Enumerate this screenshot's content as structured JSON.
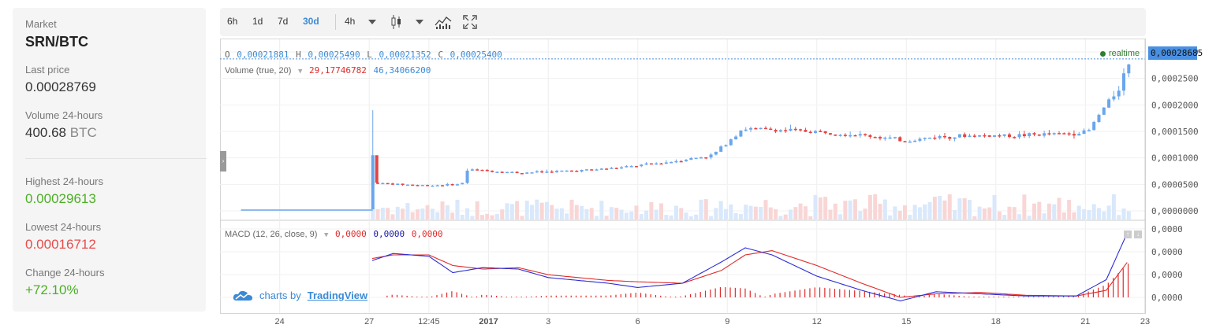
{
  "market": {
    "market_label": "Market",
    "market_value": "SRN/BTC",
    "last_price_label": "Last price",
    "last_price_value": "0.00028769",
    "volume_label": "Volume 24-hours",
    "volume_value": "400.68",
    "volume_unit": "BTC",
    "highest_label": "Highest 24-hours",
    "highest_value": "0.00029613",
    "lowest_label": "Lowest 24-hours",
    "lowest_value": "0.00016712",
    "change_label": "Change 24-hours",
    "change_value": "+72.10%"
  },
  "toolbar": {
    "ranges": [
      "6h",
      "1d",
      "7d",
      "30d"
    ],
    "active_range": "30d",
    "interval": "4h"
  },
  "legend": {
    "o_label": "O",
    "o_value": "0,00021881",
    "h_label": "H",
    "h_value": "0,00025490",
    "l_label": "L",
    "l_value": "0,00021352",
    "c_label": "C",
    "c_value": "0,00025400",
    "volume_title": "Volume (true, 20)",
    "volume_red": "29,17746782",
    "volume_blue": "46,34066200",
    "macd_title": "MACD (12, 26, close, 9)",
    "macd_v1": "0,0000",
    "macd_v2": "0,0000",
    "macd_v3": "0,0000",
    "realtime": "realtime",
    "last_price_tag": "0,00028685"
  },
  "branding": {
    "prefix": "charts by",
    "name": "TradingView"
  },
  "colors": {
    "up": "#6aa6ec",
    "down": "#e44343",
    "macd": "#2b2bd6",
    "signal": "#e02a2a",
    "accent": "#3b8ad6",
    "realtime": "#2e7d32"
  },
  "chart_data": {
    "type": "candlestick",
    "price_axis_ticks": [
      "0,00030000",
      "0,00025000",
      "0,00020000",
      "0,00015000",
      "0,00010000",
      "0,00005000",
      "0,00000000"
    ],
    "price_ylim": [
      0,
      0.0003
    ],
    "macd_axis_ticks": [
      "0,0000",
      "0,0000",
      "0,0000",
      "0,0000"
    ],
    "time_axis": [
      {
        "label": "24",
        "t": 0.5
      },
      {
        "label": "27",
        "t": 3.5
      },
      {
        "label": "12:45",
        "t": 5.5
      },
      {
        "label": "2017",
        "t": 7.5
      },
      {
        "label": "3",
        "t": 9.5
      },
      {
        "label": "6",
        "t": 12.5
      },
      {
        "label": "9",
        "t": 15.5
      },
      {
        "label": "12",
        "t": 18.5
      },
      {
        "label": "15",
        "t": 21.5
      },
      {
        "label": "18",
        "t": 24.5
      },
      {
        "label": "21",
        "t": 27.5
      },
      {
        "label": "23",
        "t": 29.5
      }
    ],
    "t_range": [
      -1.5,
      29.5
    ],
    "price_key_points": [
      {
        "t": 3.62,
        "p": 5.3e-05
      },
      {
        "t": 4.5,
        "p": 5e-05
      },
      {
        "t": 5.5,
        "p": 4.8e-05
      },
      {
        "t": 6.6,
        "p": 5e-05
      },
      {
        "t": 6.8,
        "p": 7.8e-05
      },
      {
        "t": 8.5,
        "p": 7.2e-05
      },
      {
        "t": 10.5,
        "p": 7.6e-05
      },
      {
        "t": 12.0,
        "p": 8.2e-05
      },
      {
        "t": 13.5,
        "p": 9.2e-05
      },
      {
        "t": 15.0,
        "p": 0.000105
      },
      {
        "t": 16.0,
        "p": 0.000155
      },
      {
        "t": 17.5,
        "p": 0.000152
      },
      {
        "t": 19.0,
        "p": 0.000148
      },
      {
        "t": 20.5,
        "p": 0.00014
      },
      {
        "t": 21.5,
        "p": 0.000132
      },
      {
        "t": 22.5,
        "p": 0.00014
      },
      {
        "t": 23.8,
        "p": 0.000142
      },
      {
        "t": 25.0,
        "p": 0.000142
      },
      {
        "t": 27.0,
        "p": 0.000146
      },
      {
        "t": 27.6,
        "p": 0.00015
      },
      {
        "t": 28.0,
        "p": 0.000185
      },
      {
        "t": 28.6,
        "p": 0.00023
      },
      {
        "t": 29.0,
        "p": 0.000287
      }
    ],
    "macd_key_points": [
      {
        "t": 3.6,
        "m": 0.52,
        "s": 0.55
      },
      {
        "t": 4.3,
        "m": 0.62,
        "s": 0.6
      },
      {
        "t": 5.5,
        "m": 0.58,
        "s": 0.6
      },
      {
        "t": 6.3,
        "m": 0.35,
        "s": 0.45
      },
      {
        "t": 7.3,
        "m": 0.42,
        "s": 0.4
      },
      {
        "t": 8.5,
        "m": 0.4,
        "s": 0.42
      },
      {
        "t": 9.5,
        "m": 0.28,
        "s": 0.32
      },
      {
        "t": 11.5,
        "m": 0.2,
        "s": 0.24
      },
      {
        "t": 12.5,
        "m": 0.14,
        "s": 0.22
      },
      {
        "t": 14.0,
        "m": 0.2,
        "s": 0.2
      },
      {
        "t": 15.3,
        "m": 0.5,
        "s": 0.38
      },
      {
        "t": 16.1,
        "m": 0.7,
        "s": 0.6
      },
      {
        "t": 17.0,
        "m": 0.6,
        "s": 0.66
      },
      {
        "t": 18.5,
        "m": 0.3,
        "s": 0.45
      },
      {
        "t": 20.0,
        "m": 0.1,
        "s": 0.2
      },
      {
        "t": 21.3,
        "m": -0.05,
        "s": 0.0
      },
      {
        "t": 22.5,
        "m": 0.08,
        "s": 0.05
      },
      {
        "t": 24.0,
        "m": 0.05,
        "s": 0.07
      },
      {
        "t": 25.5,
        "m": 0.02,
        "s": 0.03
      },
      {
        "t": 27.2,
        "m": 0.02,
        "s": 0.02
      },
      {
        "t": 28.2,
        "m": 0.25,
        "s": 0.1
      },
      {
        "t": 29.0,
        "m": 1.0,
        "s": 0.55
      }
    ]
  }
}
